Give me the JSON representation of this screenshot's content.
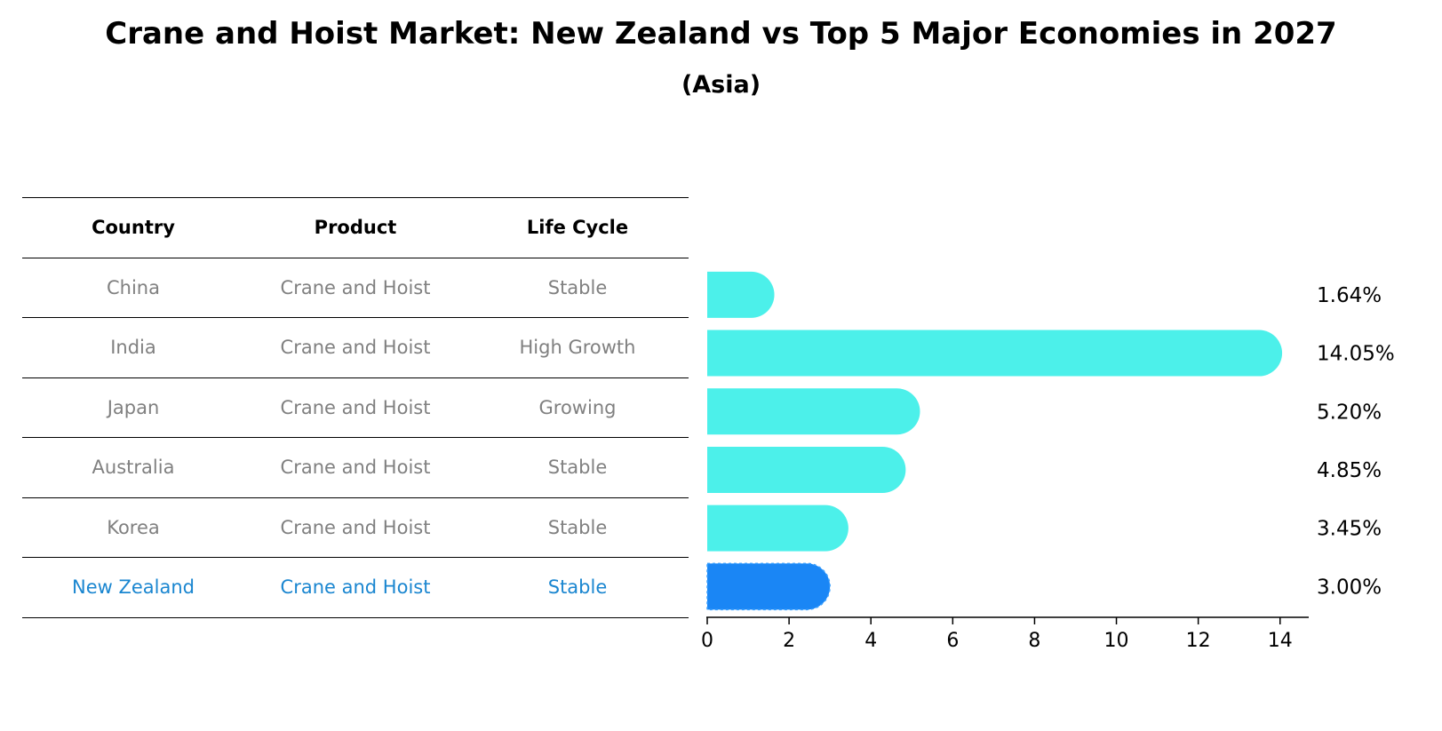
{
  "title": "Crane and Hoist Market: New Zealand vs Top 5 Major Economies in 2027",
  "subtitle": "(Asia)",
  "table": {
    "headers": [
      "Country",
      "Product",
      "Life Cycle"
    ],
    "rows": [
      {
        "country": "China",
        "product": "Crane and Hoist",
        "life_cycle": "Stable"
      },
      {
        "country": "India",
        "product": "Crane and Hoist",
        "life_cycle": "High Growth"
      },
      {
        "country": "Japan",
        "product": "Crane and Hoist",
        "life_cycle": "Growing"
      },
      {
        "country": "Australia",
        "product": "Crane and Hoist",
        "life_cycle": "Stable"
      },
      {
        "country": "Korea",
        "product": "Crane and Hoist",
        "life_cycle": "Stable"
      },
      {
        "country": "New Zealand",
        "product": "Crane and Hoist",
        "life_cycle": "Stable"
      }
    ]
  },
  "chart_data": {
    "type": "bar",
    "orientation": "horizontal",
    "categories": [
      "China",
      "India",
      "Japan",
      "Australia",
      "Korea",
      "New Zealand"
    ],
    "values": [
      1.64,
      14.05,
      5.2,
      4.85,
      3.45,
      3.0
    ],
    "value_labels": [
      "1.64%",
      "14.05%",
      "5.20%",
      "4.85%",
      "3.45%",
      "3.00%"
    ],
    "highlight": "New Zealand",
    "xlim": [
      0,
      14.7
    ],
    "xticks": [
      0,
      2,
      4,
      6,
      8,
      10,
      12,
      14
    ],
    "grid": false,
    "colors": {
      "bar": "#4cf0ea",
      "highlight": "#1a86f5"
    }
  }
}
